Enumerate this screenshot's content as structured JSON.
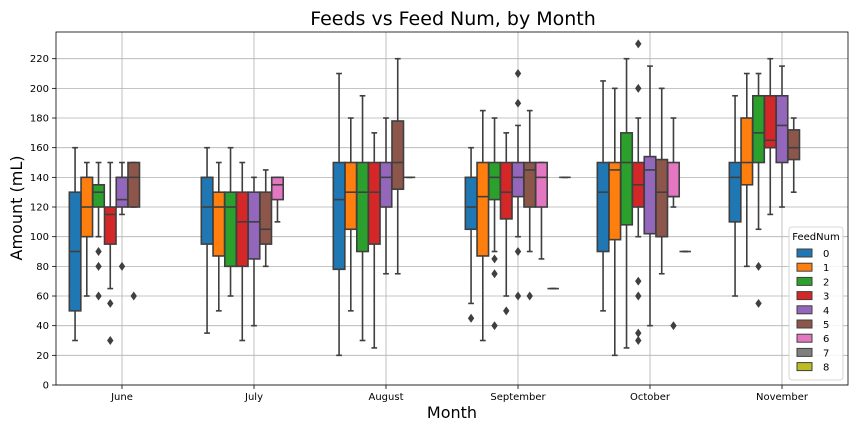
{
  "chart_data": {
    "type": "box",
    "title": "Feeds vs Feed Num, by Month",
    "xlabel": "Month",
    "ylabel": "Amount (mL)",
    "ylim": [
      0,
      238
    ],
    "yticks": [
      0,
      20,
      40,
      60,
      80,
      100,
      120,
      140,
      160,
      180,
      200,
      220
    ],
    "grid": true,
    "categories": [
      "June",
      "July",
      "August",
      "September",
      "October",
      "November"
    ],
    "legend": {
      "title": "FeedNum",
      "placement": "lower-right",
      "entries": [
        {
          "label": "0",
          "color": "#1f77b4"
        },
        {
          "label": "1",
          "color": "#ff7f0e"
        },
        {
          "label": "2",
          "color": "#2ca02c"
        },
        {
          "label": "3",
          "color": "#d62728"
        },
        {
          "label": "4",
          "color": "#9467bd"
        },
        {
          "label": "5",
          "color": "#8c564b"
        },
        {
          "label": "6",
          "color": "#e377c2"
        },
        {
          "label": "7",
          "color": "#7f7f7f"
        },
        {
          "label": "8",
          "color": "#bcbd22"
        }
      ]
    },
    "boxes": [
      {
        "month": "June",
        "feed": 0,
        "min": 30,
        "q1": 50,
        "median": 90,
        "q3": 130,
        "max": 160,
        "outliers": []
      },
      {
        "month": "June",
        "feed": 1,
        "min": 60,
        "q1": 100,
        "median": 120,
        "q3": 140,
        "max": 150,
        "outliers": []
      },
      {
        "month": "June",
        "feed": 2,
        "min": 100,
        "q1": 120,
        "median": 130,
        "q3": 135,
        "max": 150,
        "outliers": [
          90,
          80,
          60
        ]
      },
      {
        "month": "June",
        "feed": 3,
        "min": 65,
        "q1": 95,
        "median": 115,
        "q3": 120,
        "max": 150,
        "outliers": [
          55,
          30
        ]
      },
      {
        "month": "June",
        "feed": 4,
        "min": 115,
        "q1": 120,
        "median": 125,
        "q3": 140,
        "max": 150,
        "outliers": [
          80
        ]
      },
      {
        "month": "June",
        "feed": 5,
        "min": 120,
        "q1": 120,
        "median": 140,
        "q3": 150,
        "max": 150,
        "outliers": [
          60
        ]
      },
      {
        "month": "July",
        "feed": 0,
        "min": 35,
        "q1": 95,
        "median": 120,
        "q3": 140,
        "max": 160,
        "outliers": []
      },
      {
        "month": "July",
        "feed": 1,
        "min": 50,
        "q1": 87,
        "median": 120,
        "q3": 130,
        "max": 150,
        "outliers": []
      },
      {
        "month": "July",
        "feed": 2,
        "min": 60,
        "q1": 80,
        "median": 120,
        "q3": 130,
        "max": 160,
        "outliers": []
      },
      {
        "month": "July",
        "feed": 3,
        "min": 30,
        "q1": 80,
        "median": 110,
        "q3": 130,
        "max": 150,
        "outliers": []
      },
      {
        "month": "July",
        "feed": 4,
        "min": 40,
        "q1": 85,
        "median": 110,
        "q3": 130,
        "max": 140,
        "outliers": []
      },
      {
        "month": "July",
        "feed": 5,
        "min": 80,
        "q1": 95,
        "median": 105,
        "q3": 130,
        "max": 145,
        "outliers": []
      },
      {
        "month": "July",
        "feed": 6,
        "min": 110,
        "q1": 125,
        "median": 135,
        "q3": 140,
        "max": 140,
        "outliers": []
      },
      {
        "month": "August",
        "feed": 0,
        "min": 20,
        "q1": 78,
        "median": 125,
        "q3": 150,
        "max": 210,
        "outliers": []
      },
      {
        "month": "August",
        "feed": 1,
        "min": 50,
        "q1": 105,
        "median": 130,
        "q3": 150,
        "max": 180,
        "outliers": []
      },
      {
        "month": "August",
        "feed": 2,
        "min": 30,
        "q1": 90,
        "median": 130,
        "q3": 150,
        "max": 195,
        "outliers": []
      },
      {
        "month": "August",
        "feed": 3,
        "min": 25,
        "q1": 95,
        "median": 130,
        "q3": 150,
        "max": 170,
        "outliers": []
      },
      {
        "month": "August",
        "feed": 4,
        "min": 75,
        "q1": 120,
        "median": 140,
        "q3": 150,
        "max": 180,
        "outliers": []
      },
      {
        "month": "August",
        "feed": 5,
        "min": 75,
        "q1": 132,
        "median": 150,
        "q3": 178,
        "max": 220,
        "outliers": []
      },
      {
        "month": "August",
        "feed": 6,
        "min": 140,
        "q1": 140,
        "median": 140,
        "q3": 140,
        "max": 140,
        "outliers": []
      },
      {
        "month": "September",
        "feed": 0,
        "min": 55,
        "q1": 105,
        "median": 120,
        "q3": 140,
        "max": 160,
        "outliers": [
          45
        ]
      },
      {
        "month": "September",
        "feed": 1,
        "min": 30,
        "q1": 87,
        "median": 127,
        "q3": 150,
        "max": 185,
        "outliers": []
      },
      {
        "month": "September",
        "feed": 2,
        "min": 90,
        "q1": 125,
        "median": 140,
        "q3": 150,
        "max": 180,
        "outliers": [
          85,
          75,
          40
        ]
      },
      {
        "month": "September",
        "feed": 3,
        "min": 60,
        "q1": 112,
        "median": 130,
        "q3": 150,
        "max": 170,
        "outliers": [
          50
        ]
      },
      {
        "month": "September",
        "feed": 4,
        "min": 100,
        "q1": 127,
        "median": 140,
        "q3": 150,
        "max": 175,
        "outliers": [
          210,
          190,
          90,
          60
        ]
      },
      {
        "month": "September",
        "feed": 5,
        "min": 90,
        "q1": 120,
        "median": 145,
        "q3": 150,
        "max": 185,
        "outliers": [
          60
        ]
      },
      {
        "month": "September",
        "feed": 6,
        "min": 85,
        "q1": 120,
        "median": 140,
        "q3": 150,
        "max": 150,
        "outliers": []
      },
      {
        "month": "September",
        "feed": 7,
        "min": 65,
        "q1": 65,
        "median": 65,
        "q3": 65,
        "max": 65,
        "outliers": []
      },
      {
        "month": "September",
        "feed": 8,
        "min": 140,
        "q1": 140,
        "median": 140,
        "q3": 140,
        "max": 140,
        "outliers": []
      },
      {
        "month": "October",
        "feed": 0,
        "min": 50,
        "q1": 90,
        "median": 130,
        "q3": 150,
        "max": 205,
        "outliers": []
      },
      {
        "month": "October",
        "feed": 1,
        "min": 20,
        "q1": 98,
        "median": 145,
        "q3": 150,
        "max": 200,
        "outliers": []
      },
      {
        "month": "October",
        "feed": 2,
        "min": 25,
        "q1": 108,
        "median": 150,
        "q3": 170,
        "max": 220,
        "outliers": []
      },
      {
        "month": "October",
        "feed": 3,
        "min": 100,
        "q1": 120,
        "median": 135,
        "q3": 150,
        "max": 180,
        "outliers": [
          230,
          200,
          70,
          60,
          35,
          30
        ]
      },
      {
        "month": "October",
        "feed": 4,
        "min": 40,
        "q1": 102,
        "median": 145,
        "q3": 154,
        "max": 215,
        "outliers": []
      },
      {
        "month": "October",
        "feed": 5,
        "min": 75,
        "q1": 100,
        "median": 130,
        "q3": 152,
        "max": 200,
        "outliers": []
      },
      {
        "month": "October",
        "feed": 6,
        "min": 120,
        "q1": 127,
        "median": 127,
        "q3": 150,
        "max": 180,
        "outliers": [
          40
        ]
      },
      {
        "month": "October",
        "feed": 7,
        "min": 90,
        "q1": 90,
        "median": 90,
        "q3": 90,
        "max": 90,
        "outliers": []
      },
      {
        "month": "November",
        "feed": 0,
        "min": 60,
        "q1": 110,
        "median": 140,
        "q3": 150,
        "max": 195,
        "outliers": []
      },
      {
        "month": "November",
        "feed": 1,
        "min": 80,
        "q1": 135,
        "median": 150,
        "q3": 180,
        "max": 210,
        "outliers": []
      },
      {
        "month": "November",
        "feed": 2,
        "min": 105,
        "q1": 150,
        "median": 170,
        "q3": 195,
        "max": 210,
        "outliers": [
          80,
          55
        ]
      },
      {
        "month": "November",
        "feed": 3,
        "min": 115,
        "q1": 160,
        "median": 165,
        "q3": 195,
        "max": 220,
        "outliers": []
      },
      {
        "month": "November",
        "feed": 4,
        "min": 120,
        "q1": 150,
        "median": 175,
        "q3": 195,
        "max": 215,
        "outliers": []
      },
      {
        "month": "November",
        "feed": 5,
        "min": 130,
        "q1": 152,
        "median": 160,
        "q3": 172,
        "max": 180,
        "outliers": []
      }
    ]
  }
}
